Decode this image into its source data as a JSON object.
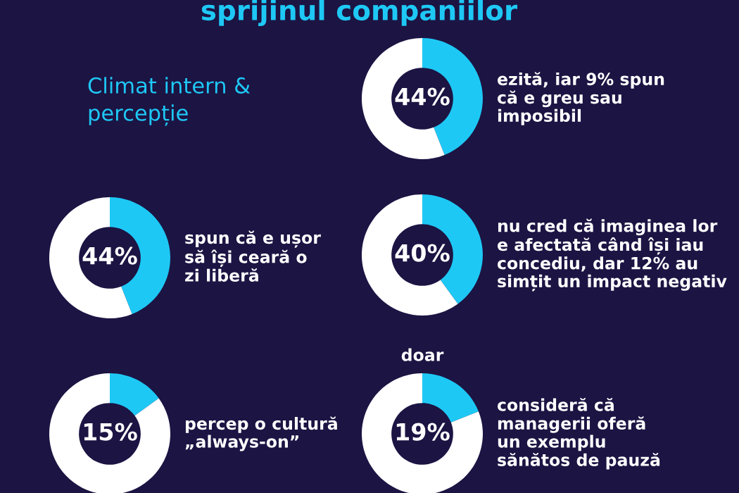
{
  "chart_data": [
    {
      "type": "other",
      "title": "sprijinul companiilor",
      "subtitle": "Climat intern &\npercepție"
    },
    {
      "type": "donut",
      "categories": [
        null,
        null
      ],
      "values": [
        44,
        56
      ],
      "colors": [
        "#1ec8f5",
        "#ffffff"
      ],
      "value_labels": [
        "44%",
        null
      ],
      "annotations": [
        "ezită, iar 9% spun\ncă e greu sau\nimposibil"
      ]
    },
    {
      "type": "donut",
      "categories": [
        null,
        null
      ],
      "values": [
        44,
        56
      ],
      "colors": [
        "#1ec8f5",
        "#ffffff"
      ],
      "value_labels": [
        "44%",
        null
      ],
      "annotations": [
        "spun că e ușor\nsă își ceară o\nzi liberă"
      ]
    },
    {
      "type": "donut",
      "categories": [
        null,
        null
      ],
      "values": [
        40,
        60
      ],
      "colors": [
        "#1ec8f5",
        "#ffffff"
      ],
      "value_labels": [
        "40%",
        null
      ],
      "annotations": [
        "nu cred că imaginea lor\ne afectată când își iau\nconcediu, dar 12% au\nsimțit un impact negativ"
      ]
    },
    {
      "type": "donut",
      "categories": [
        null,
        null
      ],
      "values": [
        15,
        85
      ],
      "colors": [
        "#1ec8f5",
        "#ffffff"
      ],
      "value_labels": [
        "15%",
        null
      ],
      "annotations": [
        "percep o cultură\n„always-on”"
      ]
    },
    {
      "type": "donut",
      "categories": [
        null,
        null
      ],
      "values": [
        19,
        81
      ],
      "colors": [
        "#1ec8f5",
        "#ffffff"
      ],
      "value_labels": [
        "19%",
        null
      ],
      "annotations": [
        "doar",
        "consideră că\nmanagerii oferă\nun exemplu\nsănătos de pauză"
      ]
    }
  ]
}
